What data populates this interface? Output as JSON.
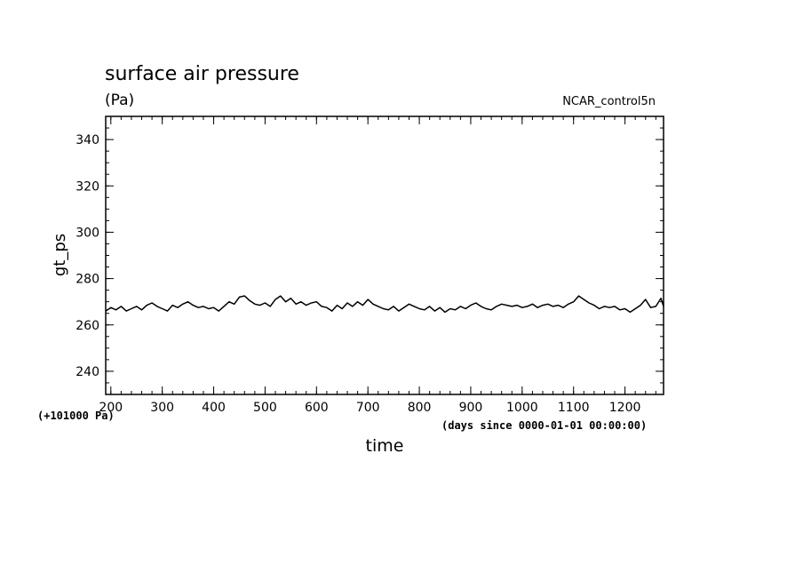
{
  "chart_data": {
    "type": "line",
    "title": "surface air pressure",
    "units": "(Pa)",
    "run_label": "NCAR_control5n",
    "xlabel": "time",
    "ylabel": "gt_ps",
    "x_units_note": "(days since 0000-01-01 00:00:00)",
    "y_offset_note": "(+101000 Pa)",
    "xlim": [
      190,
      1275
    ],
    "ylim": [
      230,
      350
    ],
    "x_ticks": [
      200,
      300,
      400,
      500,
      600,
      700,
      800,
      900,
      1000,
      1100,
      1200
    ],
    "y_ticks": [
      240,
      260,
      280,
      300,
      320,
      340
    ],
    "series": [
      {
        "name": "gt_ps",
        "color": "#000000",
        "x": [
          190,
          200,
          210,
          220,
          230,
          240,
          250,
          260,
          270,
          280,
          290,
          300,
          310,
          320,
          330,
          340,
          350,
          360,
          370,
          380,
          390,
          400,
          410,
          420,
          430,
          440,
          450,
          460,
          470,
          480,
          490,
          500,
          510,
          520,
          530,
          540,
          550,
          560,
          570,
          580,
          590,
          600,
          610,
          620,
          630,
          640,
          650,
          660,
          670,
          680,
          690,
          700,
          710,
          720,
          730,
          740,
          750,
          760,
          770,
          780,
          790,
          800,
          810,
          820,
          830,
          840,
          850,
          860,
          870,
          880,
          890,
          900,
          910,
          920,
          930,
          940,
          950,
          960,
          970,
          980,
          990,
          1000,
          1010,
          1020,
          1030,
          1040,
          1050,
          1060,
          1070,
          1080,
          1090,
          1100,
          1110,
          1120,
          1130,
          1140,
          1150,
          1160,
          1170,
          1180,
          1190,
          1200,
          1210,
          1220,
          1230,
          1240,
          1250,
          1260,
          1270,
          1275
        ],
        "values": [
          266,
          267.5,
          266.5,
          268,
          266,
          267,
          268,
          266.5,
          268.5,
          269.5,
          268,
          267,
          266,
          268.5,
          267.5,
          269,
          270,
          268.5,
          267.5,
          268,
          267,
          267.5,
          266,
          268,
          270,
          269,
          272,
          272.5,
          270.5,
          269,
          268.5,
          269.5,
          268,
          271,
          272.5,
          270,
          271.5,
          269,
          270,
          268.5,
          269.5,
          270,
          268,
          267.5,
          266,
          268.5,
          267,
          269.5,
          268,
          270,
          268.5,
          271,
          269,
          268,
          267,
          266.5,
          268,
          266,
          267.5,
          269,
          268,
          267,
          266.5,
          268,
          266,
          267.5,
          265.5,
          267,
          266.5,
          268,
          267,
          268.5,
          269.5,
          268,
          267,
          266.5,
          268,
          269,
          268.5,
          268,
          268.5,
          267.5,
          268,
          269,
          267.5,
          268.5,
          269,
          268,
          268.5,
          267.5,
          269,
          270,
          272.5,
          271,
          269.5,
          268.5,
          267,
          268,
          267.5,
          268,
          266.5,
          267,
          265.5,
          267,
          268.5,
          271,
          267.5,
          268,
          271.5,
          268
        ]
      }
    ]
  }
}
